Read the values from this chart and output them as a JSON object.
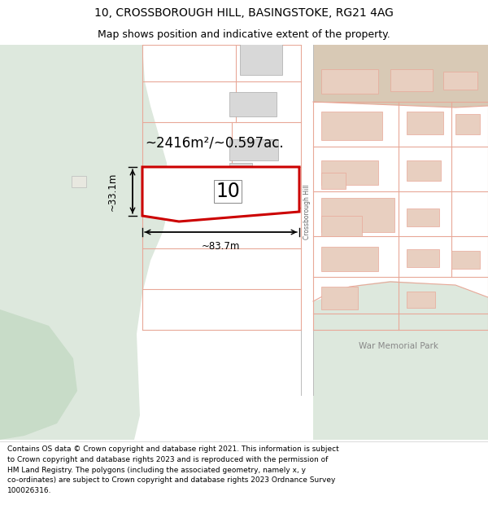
{
  "title": "10, CROSSBOROUGH HILL, BASINGSTOKE, RG21 4AG",
  "subtitle": "Map shows position and indicative extent of the property.",
  "footer": "Contains OS data © Crown copyright and database right 2021. This information is subject\nto Crown copyright and database rights 2023 and is reproduced with the permission of\nHM Land Registry. The polygons (including the associated geometry, namely x, y\nco-ordinates) are subject to Crown copyright and database rights 2023 Ordnance Survey\n100026316.",
  "map_bg": "#eef2ee",
  "green_bg": "#dde8dd",
  "white_bg": "#ffffff",
  "tan_bg": "#d8c9b5",
  "property_outline_color": "#e8a898",
  "highlight_outline_color": "#cc0000",
  "building_fill": "#d8d8d8",
  "building_fill_right": "#e8cfc0",
  "area_label": "~2416m²/~0.597ac.",
  "width_label": "~83.7m",
  "height_label": "~33.1m",
  "number_label": "10",
  "road_label": "Crossborough Hill",
  "park_label": "War Memorial Park",
  "title_fontsize": 10,
  "subtitle_fontsize": 9,
  "footer_fontsize": 6.5
}
